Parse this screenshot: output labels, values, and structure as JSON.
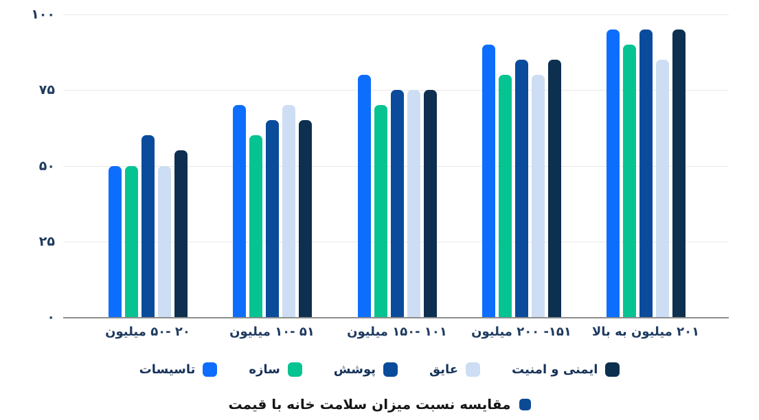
{
  "chart_data": {
    "type": "bar",
    "title": "مقایسه نسبت میزان سلامت خانه با قیمت",
    "title_marker_color": "#0c4a94",
    "categories": [
      "۲۰ -۵۰ میلیون",
      "۵۱ -۱۰ میلیون",
      "۱۰۱ -۱۵۰ میلیون",
      "۱۵۱- ۲۰۰ میلیون",
      "۲۰۱ میلیون به بالا"
    ],
    "series": [
      {
        "name": "تاسیسات",
        "color": "#0d6efd",
        "values": [
          50,
          70,
          80,
          90,
          95
        ]
      },
      {
        "name": "سازه",
        "color": "#06c392",
        "values": [
          50,
          60,
          70,
          80,
          90
        ]
      },
      {
        "name": "پوشش",
        "color": "#0a4b9b",
        "values": [
          60,
          65,
          75,
          85,
          95
        ]
      },
      {
        "name": "عایق",
        "color": "#cdddf3",
        "values": [
          50,
          70,
          75,
          80,
          85
        ]
      },
      {
        "name": "ایمنی و امنیت",
        "color": "#0d2f50",
        "values": [
          55,
          65,
          75,
          85,
          95
        ]
      }
    ],
    "y_ticks": [
      "۱۰۰",
      "۷۵",
      "۵۰",
      "۲۵",
      "۰"
    ],
    "ylim": [
      0,
      100
    ],
    "grid": true,
    "legend_position": "bottom"
  }
}
